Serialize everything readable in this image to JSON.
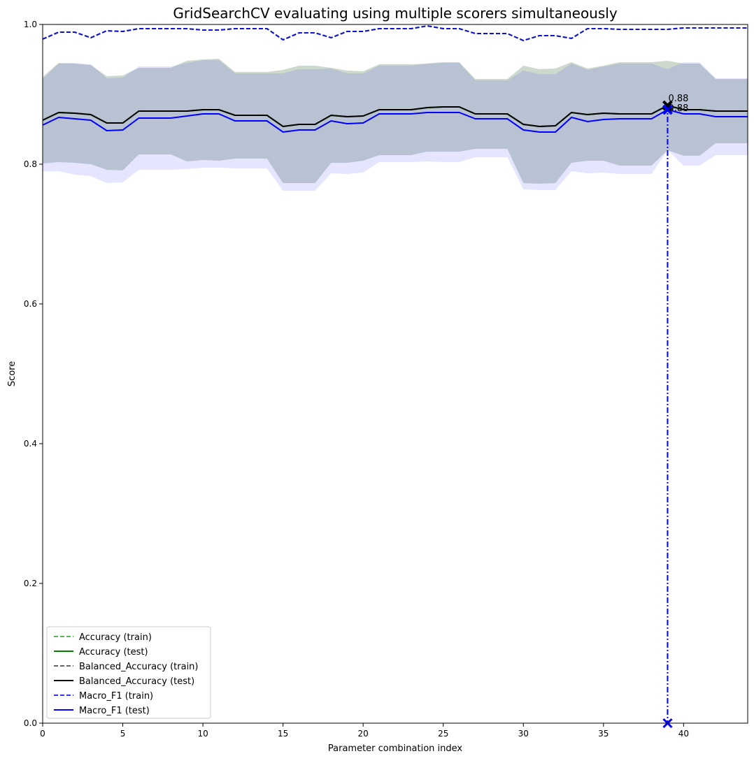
{
  "chart_data": {
    "type": "line",
    "title": "GridSearchCV evaluating using multiple scorers simultaneously",
    "xlabel": "Parameter combination index",
    "ylabel": "Score",
    "xlim": [
      0,
      44
    ],
    "ylim": [
      0.0,
      1.0
    ],
    "xticks": [
      0,
      5,
      10,
      15,
      20,
      25,
      30,
      35,
      40
    ],
    "xtick_labels": [
      "0",
      "5",
      "10",
      "15",
      "20",
      "25",
      "30",
      "35",
      "40"
    ],
    "yticks": [
      0.0,
      0.2,
      0.4,
      0.6,
      0.8,
      1.0
    ],
    "ytick_labels": [
      "0.0",
      "0.2",
      "0.4",
      "0.6",
      "0.8",
      "1.0"
    ],
    "grid": false,
    "legend_position": "lower-left",
    "x": [
      0,
      1,
      2,
      3,
      4,
      5,
      6,
      7,
      8,
      9,
      10,
      11,
      12,
      13,
      14,
      15,
      16,
      17,
      18,
      19,
      20,
      21,
      22,
      23,
      24,
      25,
      26,
      27,
      28,
      29,
      30,
      31,
      32,
      33,
      34,
      35,
      36,
      37,
      38,
      39,
      40,
      41,
      42,
      43,
      44
    ],
    "series": [
      {
        "name": "Accuracy (train)",
        "color": "#2ca02c",
        "style": "dashed",
        "values": [
          0.979,
          0.989,
          0.989,
          0.981,
          0.991,
          0.99,
          0.994,
          0.994,
          0.994,
          0.994,
          0.992,
          0.992,
          0.994,
          0.994,
          0.994,
          0.978,
          0.988,
          0.988,
          0.981,
          0.99,
          0.99,
          0.994,
          0.994,
          0.994,
          0.998,
          0.994,
          0.994,
          0.987,
          0.987,
          0.987,
          0.977,
          0.984,
          0.984,
          0.98,
          0.994,
          0.994,
          0.993,
          0.993,
          0.993,
          0.993,
          0.995,
          0.995,
          0.995,
          0.995,
          0.995
        ]
      },
      {
        "name": "Accuracy (test)",
        "color": "#008000",
        "style": "solid",
        "values": [
          0.863,
          0.874,
          0.873,
          0.871,
          0.859,
          0.859,
          0.876,
          0.876,
          0.876,
          0.876,
          0.878,
          0.878,
          0.87,
          0.87,
          0.87,
          0.854,
          0.857,
          0.857,
          0.87,
          0.868,
          0.869,
          0.878,
          0.878,
          0.878,
          0.881,
          0.882,
          0.882,
          0.872,
          0.872,
          0.872,
          0.857,
          0.854,
          0.855,
          0.874,
          0.871,
          0.873,
          0.872,
          0.872,
          0.872,
          0.884,
          0.878,
          0.878,
          0.876,
          0.876,
          0.876
        ],
        "std": [
          0.062,
          0.071,
          0.071,
          0.071,
          0.067,
          0.068,
          0.062,
          0.062,
          0.062,
          0.072,
          0.072,
          0.073,
          0.062,
          0.062,
          0.062,
          0.081,
          0.084,
          0.084,
          0.068,
          0.066,
          0.064,
          0.065,
          0.065,
          0.065,
          0.063,
          0.064,
          0.064,
          0.05,
          0.05,
          0.05,
          0.084,
          0.082,
          0.082,
          0.072,
          0.066,
          0.068,
          0.074,
          0.074,
          0.074,
          0.064,
          0.066,
          0.066,
          0.046,
          0.046,
          0.046
        ]
      },
      {
        "name": "Balanced_Accuracy (train)",
        "color": "#404040",
        "style": "dashed",
        "values": [
          0.979,
          0.989,
          0.989,
          0.981,
          0.991,
          0.99,
          0.994,
          0.994,
          0.994,
          0.994,
          0.992,
          0.992,
          0.994,
          0.994,
          0.994,
          0.978,
          0.988,
          0.988,
          0.981,
          0.99,
          0.99,
          0.994,
          0.994,
          0.994,
          0.998,
          0.994,
          0.994,
          0.987,
          0.987,
          0.987,
          0.977,
          0.984,
          0.984,
          0.98,
          0.994,
          0.994,
          0.993,
          0.993,
          0.993,
          0.993,
          0.995,
          0.995,
          0.995,
          0.995,
          0.995
        ]
      },
      {
        "name": "Balanced_Accuracy (test)",
        "color": "#000000",
        "style": "solid",
        "values": [
          0.863,
          0.874,
          0.873,
          0.871,
          0.859,
          0.859,
          0.876,
          0.876,
          0.876,
          0.876,
          0.878,
          0.878,
          0.87,
          0.87,
          0.87,
          0.854,
          0.857,
          0.857,
          0.87,
          0.868,
          0.869,
          0.878,
          0.878,
          0.878,
          0.881,
          0.882,
          0.882,
          0.872,
          0.872,
          0.872,
          0.857,
          0.854,
          0.855,
          0.874,
          0.871,
          0.873,
          0.872,
          0.872,
          0.872,
          0.884,
          0.878,
          0.878,
          0.876,
          0.876,
          0.876
        ],
        "std": [
          0.062,
          0.071,
          0.071,
          0.071,
          0.067,
          0.068,
          0.062,
          0.062,
          0.062,
          0.072,
          0.072,
          0.073,
          0.062,
          0.062,
          0.062,
          0.081,
          0.084,
          0.084,
          0.068,
          0.066,
          0.064,
          0.065,
          0.065,
          0.065,
          0.063,
          0.064,
          0.064,
          0.05,
          0.05,
          0.05,
          0.084,
          0.082,
          0.082,
          0.072,
          0.066,
          0.068,
          0.074,
          0.074,
          0.074,
          0.064,
          0.066,
          0.066,
          0.046,
          0.046,
          0.046
        ]
      },
      {
        "name": "Macro_F1 (train)",
        "color": "#0000ff",
        "style": "dashed",
        "values": [
          0.979,
          0.989,
          0.989,
          0.981,
          0.991,
          0.99,
          0.994,
          0.994,
          0.994,
          0.994,
          0.992,
          0.992,
          0.994,
          0.994,
          0.994,
          0.978,
          0.988,
          0.988,
          0.981,
          0.99,
          0.99,
          0.994,
          0.994,
          0.994,
          0.998,
          0.994,
          0.994,
          0.987,
          0.987,
          0.987,
          0.977,
          0.984,
          0.984,
          0.98,
          0.994,
          0.994,
          0.993,
          0.993,
          0.993,
          0.993,
          0.995,
          0.995,
          0.995,
          0.995,
          0.995
        ]
      },
      {
        "name": "Macro_F1 (test)",
        "color": "#0000ff",
        "style": "solid",
        "values": [
          0.856,
          0.867,
          0.865,
          0.863,
          0.848,
          0.849,
          0.866,
          0.866,
          0.866,
          0.869,
          0.872,
          0.872,
          0.862,
          0.862,
          0.862,
          0.846,
          0.849,
          0.849,
          0.862,
          0.858,
          0.859,
          0.872,
          0.872,
          0.872,
          0.874,
          0.874,
          0.874,
          0.865,
          0.865,
          0.865,
          0.849,
          0.846,
          0.846,
          0.867,
          0.861,
          0.864,
          0.865,
          0.865,
          0.865,
          0.878,
          0.872,
          0.872,
          0.868,
          0.868,
          0.868
        ],
        "std": [
          0.066,
          0.077,
          0.08,
          0.08,
          0.075,
          0.075,
          0.074,
          0.074,
          0.074,
          0.076,
          0.077,
          0.077,
          0.068,
          0.068,
          0.068,
          0.084,
          0.087,
          0.087,
          0.075,
          0.072,
          0.071,
          0.069,
          0.069,
          0.069,
          0.07,
          0.071,
          0.071,
          0.055,
          0.055,
          0.055,
          0.085,
          0.083,
          0.083,
          0.077,
          0.074,
          0.076,
          0.079,
          0.079,
          0.079,
          0.058,
          0.074,
          0.074,
          0.055,
          0.055,
          0.055
        ]
      }
    ],
    "best_marker": {
      "x": 39,
      "points": [
        {
          "scorer": "Balanced_Accuracy",
          "value": 0.884,
          "label": "0.88",
          "color": "#000000"
        },
        {
          "scorer": "Macro_F1",
          "value": 0.878,
          "label": "0.88",
          "color": "#0000ff"
        }
      ],
      "line_color": "#0000ff"
    }
  }
}
